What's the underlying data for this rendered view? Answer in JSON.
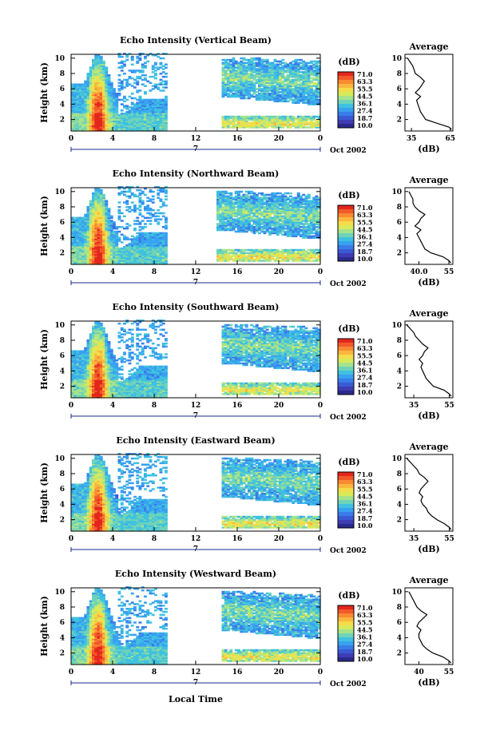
{
  "figure": {
    "xlabel_bottom": "Local Time",
    "date_label": "Oct 2002",
    "day_label": "7",
    "colorbar_unit": "(dB)",
    "colorbar_ticks": [
      "71.0",
      "63.3",
      "55.5",
      "44.5",
      "36.1",
      "27.4",
      "18.7",
      "10.0"
    ],
    "colorbar_colors": [
      "#e3261d",
      "#f2592a",
      "#f98a33",
      "#fbb63e",
      "#f5dc4b",
      "#d8ea5a",
      "#a6e38a",
      "#6fd3b9",
      "#3fc1e0",
      "#38a1f0",
      "#3a7ce8",
      "#3a5ad4",
      "#3f3cb4",
      "#2a2a8c"
    ],
    "ylabel": "Height (km)",
    "avg_title": "Average",
    "avg_xlabel": "(dB)"
  },
  "chart_data": [
    {
      "type": "heatmap",
      "title": "Echo Intensity (Vertical Beam)",
      "ylabel": "Height (km)",
      "x_ticks": [
        "0",
        "4",
        "8",
        "12",
        "16",
        "20",
        "0"
      ],
      "x_range": [
        0,
        24
      ],
      "y_ticks": [
        "2",
        "4",
        "6",
        "8",
        "10"
      ],
      "ylim": [
        0.5,
        10.5
      ],
      "gap_hours": [
        9.3,
        14.5
      ],
      "avg_panel": {
        "x_ticks": [
          "35",
          "65"
        ],
        "xlim": [
          30,
          67
        ],
        "y_ticks": [
          "2",
          "4",
          "6",
          "8",
          "10"
        ],
        "profile": {
          "height": [
            10,
            9.5,
            9,
            8.5,
            8,
            7.5,
            7,
            6.5,
            6,
            5.5,
            5,
            4.5,
            4,
            3.5,
            3,
            2.5,
            2,
            1.5,
            1,
            0.7
          ],
          "db": [
            32,
            34,
            36,
            37,
            38,
            42,
            45,
            43,
            41,
            38,
            42,
            39,
            40,
            41,
            42,
            44,
            46,
            55,
            64,
            66
          ]
        }
      }
    },
    {
      "type": "heatmap",
      "title": "Echo Intensity (Northward Beam)",
      "ylabel": "Height (km)",
      "x_ticks": [
        "0",
        "4",
        "8",
        "12",
        "16",
        "20",
        "0"
      ],
      "x_range": [
        0,
        24
      ],
      "y_ticks": [
        "2",
        "4",
        "6",
        "8",
        "10"
      ],
      "ylim": [
        0.5,
        10.5
      ],
      "gap_hours": [
        9.3,
        14
      ],
      "avg_panel": {
        "x_ticks": [
          "40.0",
          "55"
        ],
        "xlim": [
          33,
          57
        ],
        "y_ticks": [
          "2",
          "4",
          "6",
          "8",
          "10"
        ],
        "profile": {
          "height": [
            10,
            9.5,
            9,
            8.5,
            8,
            7.5,
            7,
            6.5,
            6,
            5.5,
            5,
            4.5,
            4,
            3.5,
            3,
            2.5,
            2,
            1.5,
            1,
            0.7
          ],
          "db": [
            35,
            36,
            37,
            37,
            38,
            40,
            43,
            41,
            40,
            38,
            41,
            39,
            40,
            41,
            42,
            43,
            46,
            52,
            55,
            56
          ]
        }
      }
    },
    {
      "type": "heatmap",
      "title": "Echo Intensity (Southward Beam)",
      "ylabel": "Height (km)",
      "x_ticks": [
        "0",
        "4",
        "8",
        "12",
        "16",
        "20",
        "0"
      ],
      "x_range": [
        0,
        24
      ],
      "y_ticks": [
        "2",
        "4",
        "6",
        "8",
        "10"
      ],
      "ylim": [
        0.5,
        10.5
      ],
      "gap_hours": [
        9.3,
        14.5
      ],
      "avg_panel": {
        "x_ticks": [
          "35",
          "55"
        ],
        "xlim": [
          30,
          57
        ],
        "y_ticks": [
          "2",
          "4",
          "6",
          "8",
          "10"
        ],
        "profile": {
          "height": [
            10,
            9.5,
            9,
            8.5,
            8,
            7.5,
            7,
            6.5,
            6,
            5.5,
            5,
            4.5,
            4,
            3.5,
            3,
            2.5,
            2,
            1.5,
            1,
            0.7
          ],
          "db": [
            31,
            33,
            35,
            36,
            38,
            40,
            43,
            41,
            40,
            38,
            40,
            39,
            40,
            41,
            42,
            44,
            46,
            52,
            55,
            56
          ]
        }
      }
    },
    {
      "type": "heatmap",
      "title": "Echo Intensity (Eastward Beam)",
      "ylabel": "Height (km)",
      "x_ticks": [
        "0",
        "4",
        "8",
        "12",
        "16",
        "20",
        "0"
      ],
      "x_range": [
        0,
        24
      ],
      "y_ticks": [
        "2",
        "4",
        "6",
        "8",
        "10"
      ],
      "ylim": [
        0.5,
        10.5
      ],
      "gap_hours": [
        9.3,
        14.5
      ],
      "avg_panel": {
        "x_ticks": [
          "35",
          "55"
        ],
        "xlim": [
          30,
          57
        ],
        "y_ticks": [
          "2",
          "4",
          "6",
          "8",
          "10"
        ],
        "profile": {
          "height": [
            10,
            9.5,
            9,
            8.5,
            8,
            7.5,
            7,
            6.5,
            6,
            5.5,
            5,
            4.5,
            4,
            3.5,
            3,
            2.5,
            2,
            1.5,
            1,
            0.7
          ],
          "db": [
            31,
            33,
            35,
            37,
            38,
            41,
            43,
            41,
            39,
            38,
            40,
            39,
            40,
            42,
            43,
            45,
            48,
            52,
            55,
            56
          ]
        }
      }
    },
    {
      "type": "heatmap",
      "title": "Echo Intensity (Westward Beam)",
      "ylabel": "Height (km)",
      "x_ticks": [
        "0",
        "4",
        "8",
        "12",
        "16",
        "20",
        "0"
      ],
      "x_range": [
        0,
        24
      ],
      "y_ticks": [
        "2",
        "4",
        "6",
        "8",
        "10"
      ],
      "ylim": [
        0.5,
        10.5
      ],
      "gap_hours": [
        9.3,
        14.5
      ],
      "avg_panel": {
        "x_ticks": [
          "40",
          "55"
        ],
        "xlim": [
          33,
          57
        ],
        "y_ticks": [
          "2",
          "4",
          "6",
          "8",
          "10"
        ],
        "profile": {
          "height": [
            10,
            9.5,
            9,
            8.5,
            8,
            7.5,
            7,
            6.5,
            6,
            5.5,
            5,
            4.5,
            4,
            3.5,
            3,
            2.5,
            2,
            1.5,
            1,
            0.7
          ],
          "db": [
            35,
            36,
            37,
            38,
            39,
            41,
            44,
            42,
            40,
            39,
            41,
            40,
            40,
            41,
            42,
            44,
            47,
            52,
            55,
            56
          ]
        }
      }
    }
  ]
}
